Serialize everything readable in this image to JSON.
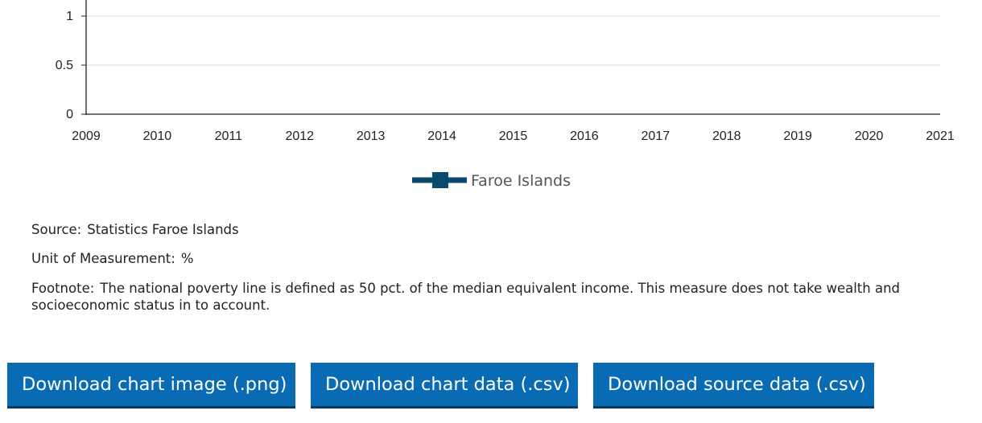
{
  "chart_data": {
    "type": "line",
    "x_ticks": [
      "2009",
      "2010",
      "2011",
      "2012",
      "2013",
      "2014",
      "2015",
      "2016",
      "2017",
      "2018",
      "2019",
      "2020",
      "2021"
    ],
    "y_ticks": [
      "0",
      "0.5",
      "1"
    ],
    "xlim": [
      2009,
      2021
    ],
    "ylim": [
      0,
      1.2
    ],
    "grid": true,
    "legend_position": "bottom-center",
    "series": [
      {
        "name": "Faroe Islands",
        "color": "#0b4a6f",
        "points": []
      }
    ]
  },
  "meta": {
    "source_label": "Source:",
    "source_value": "Statistics Faroe Islands",
    "unit_label": "Unit of Measurement:",
    "unit_value": "%",
    "footnote_label": "Footnote:",
    "footnote_value": "The national poverty line is defined as 50 pct. of the median equivalent income. This measure does not take wealth and socioeconomic status in to account."
  },
  "buttons": {
    "png": "Download chart image (.png)",
    "chart_csv": "Download chart data (.csv)",
    "source_csv": "Download source data (.csv)"
  },
  "colors": {
    "button_bg": "#0a6bb5",
    "series": "#0b4a6f"
  }
}
